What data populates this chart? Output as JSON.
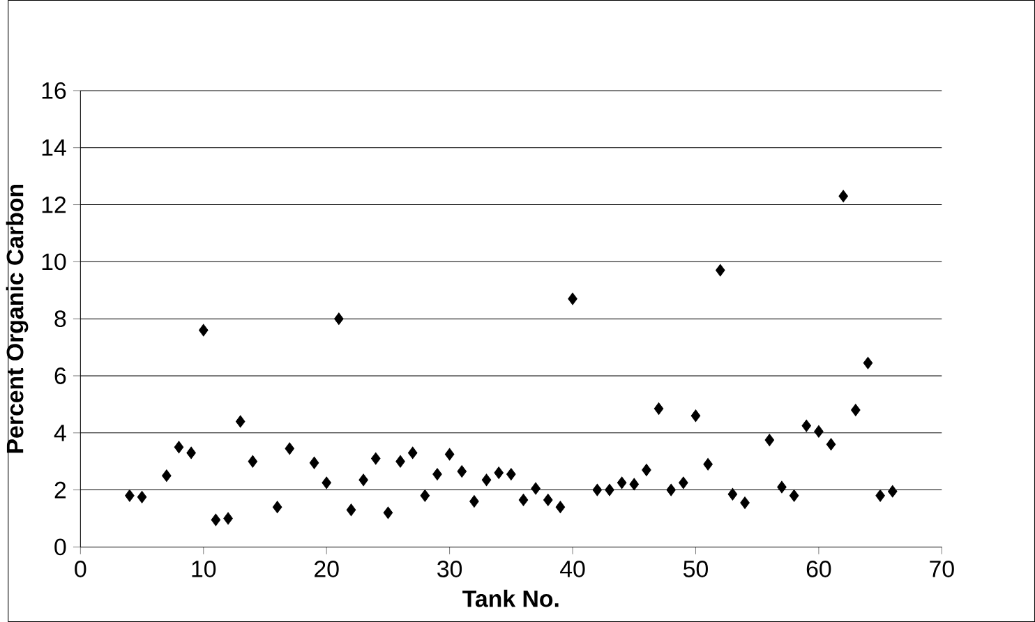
{
  "chart_data": {
    "type": "scatter",
    "xlabel": "Tank No.",
    "ylabel": "Percent Organic Carbon",
    "x": [
      4,
      5,
      7,
      8,
      9,
      10,
      11,
      12,
      13,
      14,
      16,
      17,
      19,
      20,
      21,
      22,
      23,
      24,
      25,
      26,
      27,
      28,
      29,
      30,
      31,
      32,
      33,
      34,
      35,
      36,
      37,
      38,
      39,
      40,
      42,
      43,
      44,
      45,
      46,
      47,
      48,
      49,
      50,
      51,
      52,
      53,
      54,
      56,
      57,
      58,
      59,
      60,
      61,
      62,
      63,
      64,
      65,
      66
    ],
    "values": [
      1.8,
      1.75,
      2.5,
      3.5,
      3.3,
      7.6,
      0.95,
      1.0,
      4.4,
      3.0,
      1.4,
      3.45,
      2.95,
      2.25,
      8.0,
      1.3,
      2.35,
      3.1,
      1.2,
      3.0,
      3.3,
      1.8,
      2.55,
      3.25,
      2.65,
      1.6,
      2.35,
      2.6,
      2.55,
      1.65,
      2.05,
      1.65,
      1.4,
      8.7,
      2.0,
      2.0,
      2.25,
      2.2,
      2.7,
      4.85,
      2.0,
      2.25,
      4.6,
      2.9,
      9.7,
      1.85,
      1.55,
      3.75,
      2.1,
      1.8,
      4.25,
      4.05,
      3.6,
      12.3,
      4.8,
      6.45,
      1.8,
      1.95
    ],
    "color": "#000000",
    "marker": "diamond",
    "grid": "y",
    "xlim": [
      0,
      70
    ],
    "xticks": [
      0,
      10,
      20,
      30,
      40,
      50,
      60,
      70
    ],
    "ylim": [
      0,
      16
    ],
    "yticks": [
      0,
      2,
      4,
      6,
      8,
      10,
      12,
      14,
      16
    ]
  }
}
